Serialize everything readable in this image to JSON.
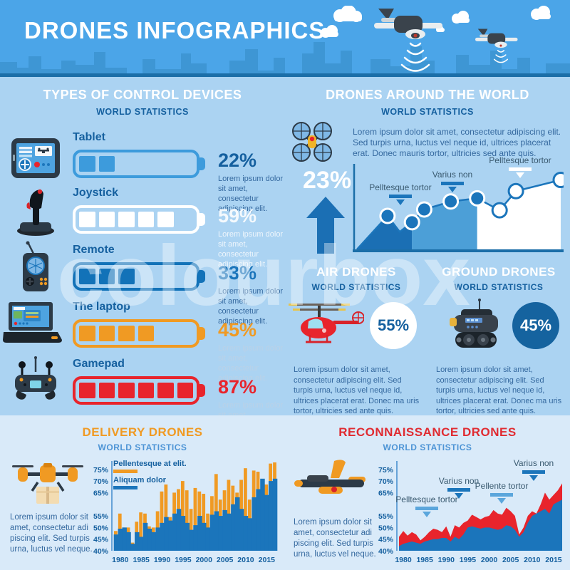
{
  "header": {
    "title": "DRONES INFOGRAPHICS"
  },
  "watermark": {
    "text": "colourbox"
  },
  "colors": {
    "header_bg": "#4BA5E8",
    "skyline": "#3E96D4",
    "header_line": "#1B6EA8",
    "main_bg": "#ABD3F2",
    "bottom_bg": "#D9EAF9",
    "dark_blue_text": "#15609F",
    "paragraph_blue": "#35699F",
    "chart_blue": "#1B75BB",
    "chart_mid_blue": "#4C9FD7",
    "chart_dark_blue": "#1B6FB4",
    "orange": "#F09A23",
    "red": "#E8242C",
    "annotation_light": "#5BA6DC",
    "annotation_dark": "#1B75BB",
    "annotation_text": "#3A5A70",
    "white": "#FFFFFF"
  },
  "control_devices": {
    "title": "TYPES OF CONTROL DEVICES",
    "subtitle": "WORLD STATISTICS",
    "caption": "Lorem ipsum dolor sit amet, consectetur adipiscing elit.",
    "items": [
      {
        "label": "Tablet",
        "value": "22%",
        "segments": 2,
        "battery_color": "#3D9BDC",
        "pct_color": "#15609F",
        "lorem_color": "#35699F"
      },
      {
        "label": "Joystick",
        "value": "59%",
        "segments": 5,
        "battery_color": "#FFFFFF",
        "pct_color": "#F4F9FD",
        "lorem_color": "#EDF5FC"
      },
      {
        "label": "Remote",
        "value": "33%",
        "segments": 3,
        "battery_color": "#1272B8",
        "pct_color": "#1B75BB",
        "lorem_color": "#35699F"
      },
      {
        "label": "The laptop",
        "value": "45%",
        "segments": 4,
        "battery_color": "#F09A23",
        "pct_color": "#F09A23",
        "lorem_color": "#B9D2E8"
      },
      {
        "label": "Gamepad",
        "value": "87%",
        "segments": 6,
        "battery_color": "#E8242C",
        "pct_color": "#E8242C",
        "lorem_color": "#B9D2E8"
      }
    ]
  },
  "world": {
    "title": "DRONES AROUND THE WORLD",
    "subtitle": "WORLD STATISTICS",
    "paragraph": "Lorem ipsum dolor sit amet, consectetur adipiscing elit. Sed turpis urna, luctus vel neque id, ultrices placerat erat. Donec mauris tortor, ultricies sed ante quis.",
    "growth": "23%"
  },
  "air_drones": {
    "title": "AIR DRONES",
    "subtitle": "WORLD STATISTICS",
    "value": "55%",
    "paragraph": "Lorem ipsum dolor sit amet, consectetur adipiscing elit. Sed turpis urna, luctus vel neque id, ultrices placerat erat. Donec ma uris tortor, ultricies sed ante quis."
  },
  "ground_drones": {
    "title": "GROUND DRONES",
    "subtitle": "WORLD STATISTICS",
    "value": "45%",
    "paragraph": "Lorem ipsum dolor sit amet, consectetur adipiscing elit. Sed turpis urna, luctus vel neque id, ultrices placerat erat. Donec ma uris tortor, ultricies sed ante quis."
  },
  "delivery": {
    "title": "DELIVERY DRONES",
    "subtitle": "WORLD STATISTICS",
    "paragraph": "Lorem ipsum dolor sit amet, consectetur adi piscing elit. Sed turpis urna, luctus vel neque."
  },
  "recon": {
    "title": "RECONNAISSANCE DRONES",
    "subtitle": "WORLD STATISTICS",
    "paragraph": "Lorem ipsum dolor sit amet, consectetur adi piscing elit. Sed turpis urna, luctus vel neque."
  },
  "icons": [
    "tablet-icon",
    "joystick-icon",
    "remote-icon",
    "laptop-icon",
    "gamepad-icon",
    "quadcopter-icon",
    "up-arrow-icon",
    "helicopter-drone-icon",
    "ground-robot-icon",
    "delivery-drone-icon",
    "recon-drone-icon",
    "drone-icon",
    "cloud-icon"
  ],
  "chart_data": [
    {
      "id": "world-growth",
      "type": "area",
      "title": "DRONES AROUND THE WORLD",
      "growth_label": "23%",
      "x_percent": [
        0,
        15,
        21,
        27,
        33,
        46,
        59,
        70,
        78,
        100
      ],
      "y_percent": [
        0,
        42,
        22,
        34,
        50,
        60,
        64,
        49,
        73,
        87
      ],
      "segment_breaks": [
        3,
        6
      ],
      "segment_colors": [
        "#1B6FB4",
        "#4C9FD7",
        "#FFFFFF"
      ],
      "marker_indices": [
        1,
        3,
        4,
        5,
        6,
        7,
        8,
        9
      ],
      "line_color": "#1B75BB",
      "annotations": [
        "Pelltesque tortor",
        "Varius non",
        "Pelltesque tortor"
      ],
      "legend_position": "none",
      "grid": false
    },
    {
      "id": "delivery-history",
      "type": "bar",
      "title": "DELIVERY DRONES",
      "years": [
        1979,
        1980,
        1981,
        1982,
        1983,
        1984,
        1985,
        1986,
        1987,
        1988,
        1989,
        1990,
        1991,
        1992,
        1993,
        1994,
        1995,
        1996,
        1997,
        1998,
        1999,
        2000,
        2001,
        2002,
        2003,
        2004,
        2005,
        2006,
        2007,
        2008,
        2009,
        2010,
        2011,
        2012,
        2013,
        2014,
        2015,
        2016,
        2017
      ],
      "series": [
        {
          "name": "Pellentesque at elit.",
          "color": "#F09A23",
          "values": [
            48.5,
            56,
            50,
            50,
            43.5,
            52.5,
            56.5,
            56,
            50.5,
            50,
            57,
            65.5,
            68.5,
            54.5,
            65,
            66.5,
            70,
            66,
            58,
            67,
            65.5,
            64.5,
            56,
            63.5,
            73,
            62,
            66,
            70.5,
            68,
            65,
            70.5,
            75.5,
            62,
            74.5,
            74,
            69,
            68.5,
            77.5,
            78
          ]
        },
        {
          "name": "Aliquam dolor",
          "color": "#1B75BB",
          "values": [
            47,
            49.5,
            50,
            48,
            43,
            48,
            46,
            52,
            49.5,
            48,
            50,
            52,
            54.5,
            53,
            56,
            58,
            55,
            52,
            49,
            51,
            55,
            52,
            50,
            55.5,
            57,
            55,
            57.5,
            56,
            60,
            63,
            58,
            55,
            54,
            63,
            66.5,
            71,
            64,
            70,
            71
          ]
        }
      ],
      "ylim": [
        40,
        78
      ],
      "yticks": [
        75,
        70,
        65,
        55,
        50,
        45,
        40
      ],
      "xticks": [
        1980,
        1985,
        1990,
        1995,
        2000,
        2005,
        2010,
        2015
      ],
      "legend_position": "top-left",
      "grid": false
    },
    {
      "id": "recon-history",
      "type": "area",
      "title": "RECONNAISSANCE DRONES",
      "years": [
        1979,
        1980,
        1981,
        1982,
        1983,
        1984,
        1985,
        1986,
        1987,
        1988,
        1989,
        1990,
        1991,
        1992,
        1993,
        1994,
        1995,
        1996,
        1997,
        1998,
        1999,
        2000,
        2001,
        2002,
        2003,
        2004,
        2005,
        2006,
        2007,
        2008,
        2009,
        2010,
        2011,
        2012,
        2013,
        2014,
        2015,
        2016,
        2017
      ],
      "series": [
        {
          "name": "upper",
          "color": "#E8242C",
          "values": [
            46,
            48.5,
            46.5,
            48,
            47,
            44.5,
            46,
            48,
            49.5,
            49,
            48,
            50.5,
            46,
            51,
            50,
            52,
            53,
            55.5,
            54.5,
            53.5,
            54.5,
            55,
            57.5,
            56,
            55.5,
            58.5,
            57,
            55,
            47,
            50,
            55,
            57,
            56,
            60,
            65,
            62,
            64,
            66,
            69
          ]
        },
        {
          "name": "lower",
          "color": "#1B75BB",
          "values": [
            42,
            43,
            43.5,
            44,
            43.5,
            43,
            44,
            44.5,
            45,
            45,
            45.5,
            45.5,
            44,
            46,
            45,
            47,
            50,
            50.5,
            50,
            49.5,
            50,
            50,
            49.5,
            49,
            49.5,
            51,
            50.5,
            49,
            46,
            48,
            52,
            55,
            56,
            57,
            58,
            56,
            60,
            61,
            62
          ]
        }
      ],
      "ylim": [
        40,
        78
      ],
      "yticks": [
        75,
        70,
        65,
        55,
        50,
        45,
        40
      ],
      "xticks": [
        1980,
        1985,
        1990,
        1995,
        2000,
        2005,
        2010,
        2015
      ],
      "annotations": [
        "Pelltesque tortor",
        "Varius non",
        "Pellente tortor",
        "Varius non"
      ],
      "legend_position": "none",
      "grid": false
    }
  ]
}
